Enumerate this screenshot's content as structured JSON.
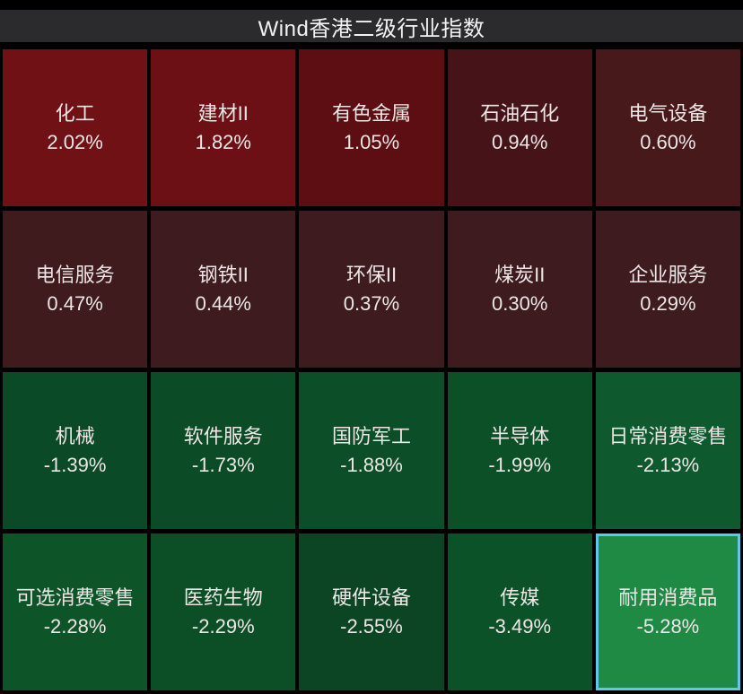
{
  "title_bar": {
    "title": "Wind香港二级行业指数"
  },
  "colors": {
    "page_bg": "#000000",
    "title_bar_bg": "#2b2b2e",
    "title_text": "#f2f2f2",
    "tile_text": "#ece6e6",
    "selected_border": "#5fc8e6",
    "positive_base": "#701116",
    "negative_base": "#0b4a26"
  },
  "chart_data": {
    "type": "heatmap",
    "title": "Wind香港二级行业指数",
    "unit": "%",
    "rows": 4,
    "cols": 5,
    "legend": "red = positive change, green = negative change; brightness scales with magnitude",
    "tiles": [
      {
        "name": "化工",
        "change_pct": 2.02,
        "label": "2.02%",
        "color": "#701116",
        "selected": false
      },
      {
        "name": "建材II",
        "change_pct": 1.82,
        "label": "1.82%",
        "color": "#6c1015",
        "selected": false
      },
      {
        "name": "有色金属",
        "change_pct": 1.05,
        "label": "1.05%",
        "color": "#5c0e13",
        "selected": false
      },
      {
        "name": "石油石化",
        "change_pct": 0.94,
        "label": "0.94%",
        "color": "#461418",
        "selected": false
      },
      {
        "name": "电气设备",
        "change_pct": 0.6,
        "label": "0.60%",
        "color": "#48191b",
        "selected": false
      },
      {
        "name": "电信服务",
        "change_pct": 0.47,
        "label": "0.47%",
        "color": "#3f1b1e",
        "selected": false
      },
      {
        "name": "钢铁II",
        "change_pct": 0.44,
        "label": "0.44%",
        "color": "#3e1b1e",
        "selected": false
      },
      {
        "name": "环保II",
        "change_pct": 0.37,
        "label": "0.37%",
        "color": "#3e1b1e",
        "selected": false
      },
      {
        "name": "煤炭II",
        "change_pct": 0.3,
        "label": "0.30%",
        "color": "#3d1b1e",
        "selected": false
      },
      {
        "name": "企业服务",
        "change_pct": 0.29,
        "label": "0.29%",
        "color": "#3d1b1e",
        "selected": false
      },
      {
        "name": "机械",
        "change_pct": -1.39,
        "label": "-1.39%",
        "color": "#0b4a26",
        "selected": false
      },
      {
        "name": "软件服务",
        "change_pct": -1.73,
        "label": "-1.73%",
        "color": "#0b4c27",
        "selected": false
      },
      {
        "name": "国防军工",
        "change_pct": -1.88,
        "label": "-1.88%",
        "color": "#0c4e28",
        "selected": false
      },
      {
        "name": "半导体",
        "change_pct": -1.99,
        "label": "-1.99%",
        "color": "#0c5028",
        "selected": false
      },
      {
        "name": "日常消费零售",
        "change_pct": -2.13,
        "label": "-2.13%",
        "color": "#0e5a2e",
        "selected": false
      },
      {
        "name": "可选消费零售",
        "change_pct": -2.28,
        "label": "-2.28%",
        "color": "#0d5429",
        "selected": false
      },
      {
        "name": "医药生物",
        "change_pct": -2.29,
        "label": "-2.29%",
        "color": "#0c4f27",
        "selected": false
      },
      {
        "name": "硬件设备",
        "change_pct": -2.55,
        "label": "-2.55%",
        "color": "#0b4524",
        "selected": false
      },
      {
        "name": "传媒",
        "change_pct": -3.49,
        "label": "-3.49%",
        "color": "#0c5229",
        "selected": false
      },
      {
        "name": "耐用消费品",
        "change_pct": -5.28,
        "label": "-5.28%",
        "color": "#1e8a44",
        "selected": true
      }
    ]
  }
}
